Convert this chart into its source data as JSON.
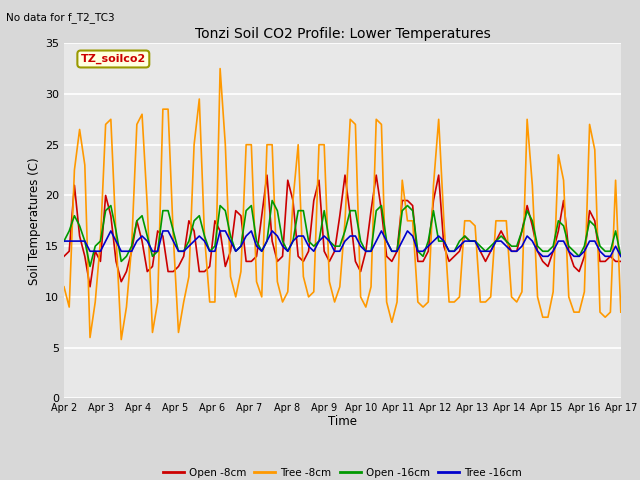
{
  "title": "Tonzi Soil CO2 Profile: Lower Temperatures",
  "subtitle": "No data for f_T2_TC3",
  "ylabel": "Soil Temperatures (C)",
  "xlabel": "Time",
  "legend_label": "TZ_soilco2",
  "ylim": [
    0,
    35
  ],
  "yticks": [
    0,
    5,
    10,
    15,
    20,
    25,
    30,
    35
  ],
  "xtick_labels": [
    "Apr 2",
    "Apr 3",
    "Apr 4",
    "Apr 5",
    "Apr 6",
    "Apr 7",
    "Apr 8",
    "Apr 9",
    "Apr 10",
    "Apr 11",
    "Apr 12",
    "Apr 13",
    "Apr 14",
    "Apr 15",
    "Apr 16",
    "Apr 17"
  ],
  "series_labels": [
    "Open -8cm",
    "Tree -8cm",
    "Open -16cm",
    "Tree -16cm"
  ],
  "series_colors": [
    "#cc0000",
    "#ff9900",
    "#009900",
    "#0000cc"
  ],
  "fig_bg_color": "#d8d8d8",
  "plot_bg_color": "#e8e8e8",
  "open8": [
    14.0,
    14.5,
    21.0,
    16.0,
    14.0,
    11.0,
    14.5,
    13.5,
    20.0,
    18.0,
    13.5,
    11.5,
    12.5,
    14.5,
    17.5,
    15.5,
    12.5,
    13.0,
    16.5,
    16.0,
    12.5,
    12.5,
    13.0,
    14.0,
    17.5,
    16.5,
    12.5,
    12.5,
    13.0,
    17.5,
    16.5,
    13.0,
    14.5,
    18.5,
    18.0,
    13.5,
    13.5,
    14.0,
    18.0,
    22.0,
    15.5,
    13.5,
    14.0,
    21.5,
    19.5,
    14.0,
    13.5,
    14.5,
    19.5,
    21.5,
    14.5,
    13.5,
    14.5,
    18.0,
    22.0,
    18.0,
    13.5,
    12.5,
    14.5,
    18.5,
    22.0,
    18.5,
    14.0,
    13.5,
    14.5,
    19.5,
    19.5,
    19.0,
    13.5,
    13.5,
    14.5,
    19.5,
    22.0,
    15.0,
    13.5,
    14.0,
    14.5,
    16.0,
    15.5,
    15.5,
    14.5,
    13.5,
    14.5,
    15.5,
    16.5,
    15.5,
    14.5,
    14.5,
    16.5,
    19.0,
    17.0,
    14.5,
    13.5,
    13.0,
    14.5,
    16.5,
    19.5,
    14.5,
    13.0,
    12.5,
    14.0,
    18.5,
    17.5,
    13.5,
    13.5,
    14.0,
    13.5,
    13.5
  ],
  "tree8": [
    11.0,
    9.0,
    22.5,
    26.5,
    23.0,
    6.0,
    9.5,
    15.5,
    27.0,
    27.5,
    16.0,
    5.8,
    9.0,
    15.0,
    27.0,
    28.0,
    19.0,
    6.5,
    9.5,
    28.5,
    28.5,
    16.0,
    6.5,
    9.5,
    12.0,
    25.0,
    29.5,
    16.0,
    9.5,
    9.5,
    32.5,
    25.0,
    12.0,
    10.0,
    12.5,
    25.0,
    25.0,
    11.5,
    10.0,
    25.0,
    25.0,
    11.5,
    9.5,
    10.5,
    19.5,
    25.0,
    12.0,
    10.0,
    10.5,
    25.0,
    25.0,
    11.5,
    9.5,
    11.0,
    17.5,
    27.5,
    27.0,
    10.0,
    9.0,
    11.0,
    27.5,
    27.0,
    9.5,
    7.5,
    9.5,
    21.5,
    17.5,
    17.5,
    9.5,
    9.0,
    9.5,
    21.0,
    27.5,
    17.5,
    9.5,
    9.5,
    10.0,
    17.5,
    17.5,
    17.0,
    9.5,
    9.5,
    10.0,
    17.5,
    17.5,
    17.5,
    10.0,
    9.5,
    10.5,
    27.5,
    21.0,
    10.0,
    8.0,
    8.0,
    10.5,
    24.0,
    21.5,
    10.0,
    8.5,
    8.5,
    10.5,
    27.0,
    24.5,
    8.5,
    8.0,
    8.5,
    21.5,
    8.5
  ],
  "open16": [
    15.5,
    16.5,
    18.0,
    17.0,
    15.5,
    13.0,
    15.0,
    15.5,
    18.5,
    19.0,
    16.5,
    13.5,
    14.0,
    15.0,
    17.5,
    18.0,
    16.0,
    14.0,
    14.5,
    18.5,
    18.5,
    16.5,
    14.5,
    14.5,
    15.5,
    17.5,
    18.0,
    16.0,
    14.5,
    15.0,
    19.0,
    18.5,
    16.0,
    14.5,
    15.0,
    18.5,
    19.0,
    15.5,
    14.5,
    15.5,
    19.5,
    18.5,
    15.5,
    14.5,
    15.5,
    18.5,
    18.5,
    15.5,
    15.0,
    15.5,
    18.5,
    15.5,
    15.0,
    15.0,
    16.5,
    18.5,
    18.5,
    15.5,
    14.5,
    14.5,
    18.5,
    19.0,
    15.5,
    14.5,
    14.5,
    18.5,
    19.0,
    18.5,
    14.5,
    14.0,
    15.5,
    18.5,
    15.5,
    15.5,
    14.5,
    14.5,
    15.5,
    16.0,
    15.5,
    15.5,
    15.0,
    14.5,
    15.0,
    15.5,
    16.0,
    15.5,
    15.0,
    15.0,
    16.5,
    18.5,
    17.5,
    15.0,
    14.5,
    14.5,
    15.0,
    17.5,
    17.0,
    15.0,
    14.5,
    14.0,
    15.0,
    17.5,
    17.0,
    15.0,
    14.5,
    14.5,
    16.5,
    14.0
  ],
  "tree16": [
    15.5,
    15.5,
    15.5,
    15.5,
    15.5,
    14.5,
    14.5,
    14.5,
    15.5,
    16.5,
    15.5,
    14.5,
    14.5,
    14.5,
    15.5,
    16.0,
    15.5,
    14.5,
    14.5,
    16.5,
    16.5,
    15.5,
    14.5,
    14.5,
    15.0,
    15.5,
    16.0,
    15.5,
    14.5,
    14.5,
    16.5,
    16.5,
    15.5,
    14.5,
    15.0,
    16.0,
    16.5,
    15.0,
    14.5,
    15.5,
    16.5,
    16.0,
    15.0,
    14.5,
    15.5,
    16.0,
    16.0,
    15.0,
    14.5,
    15.5,
    16.0,
    15.5,
    14.5,
    14.5,
    15.5,
    16.0,
    16.0,
    15.0,
    14.5,
    14.5,
    15.5,
    16.5,
    15.5,
    14.5,
    14.5,
    15.5,
    16.5,
    16.0,
    14.5,
    14.5,
    15.0,
    15.5,
    16.0,
    15.5,
    14.5,
    14.5,
    15.0,
    15.5,
    15.5,
    15.5,
    14.5,
    14.5,
    14.5,
    15.5,
    15.5,
    15.0,
    14.5,
    14.5,
    15.0,
    16.0,
    15.5,
    14.5,
    14.0,
    14.0,
    14.5,
    15.5,
    15.5,
    14.5,
    14.0,
    14.0,
    14.5,
    15.5,
    15.5,
    14.5,
    14.0,
    14.0,
    15.0,
    14.0
  ]
}
